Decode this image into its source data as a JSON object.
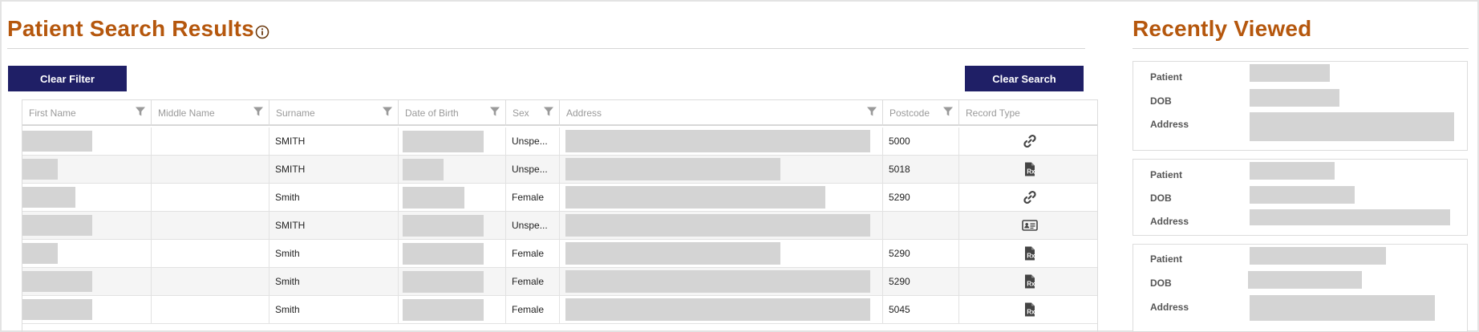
{
  "main": {
    "title": "Patient Search Results",
    "buttons": {
      "clear_filter": "Clear Filter",
      "clear_search": "Clear Search"
    },
    "columns": [
      "First Name",
      "Middle Name",
      "Surname",
      "Date of Birth",
      "Sex",
      "Address",
      "Postcode",
      "Record Type"
    ],
    "rows": [
      {
        "surname": "SMITH",
        "sex": "Unspe...",
        "postcode": "5000",
        "record_icon": "link-icon"
      },
      {
        "surname": "SMITH",
        "sex": "Unspe...",
        "postcode": "5018",
        "record_icon": "prescription-icon"
      },
      {
        "surname": "Smith",
        "sex": "Female",
        "postcode": "5290",
        "record_icon": "link-icon"
      },
      {
        "surname": "SMITH",
        "sex": "Unspe...",
        "postcode": "",
        "record_icon": "id-card-icon"
      },
      {
        "surname": "Smith",
        "sex": "Female",
        "postcode": "5290",
        "record_icon": "prescription-icon"
      },
      {
        "surname": "Smith",
        "sex": "Female",
        "postcode": "5290",
        "record_icon": "prescription-icon"
      },
      {
        "surname": "Smith",
        "sex": "Female",
        "postcode": "5045",
        "record_icon": "prescription-icon"
      }
    ]
  },
  "side": {
    "title": "Recently Viewed",
    "labels": {
      "patient": "Patient",
      "dob": "DOB",
      "address": "Address"
    }
  },
  "colors": {
    "accent": "#b5570d",
    "button": "#1f1f66",
    "redaction": "#d4d4d4"
  }
}
